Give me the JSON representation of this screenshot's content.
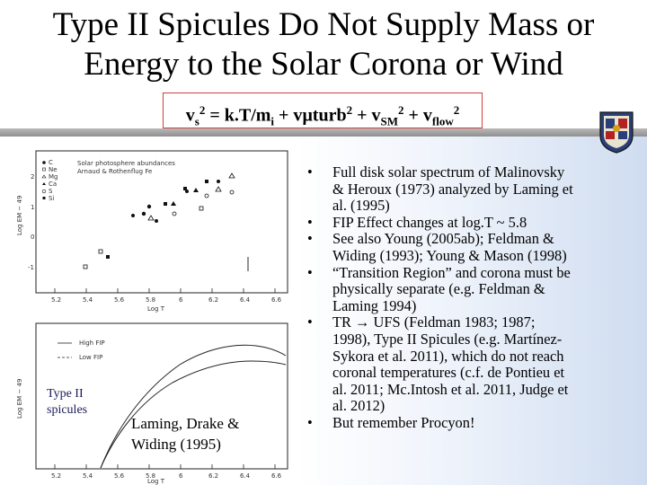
{
  "title": {
    "line1": "Type II Spicules Do Not Supply Mass or",
    "line2": "Energy to the Solar Corona or Wind"
  },
  "equation": {
    "v": "v",
    "s": "s",
    "sq": "2",
    "kT": " = k.T/m",
    "i": "i",
    "plus_v": " + v",
    "mu": "μ",
    "turb": "turb",
    "plus_v2": " + v",
    "sm": "SM",
    "plus_v3": " + v",
    "flow": "flow"
  },
  "figure_top": {
    "legend_line1": "Solar photosphere abundances",
    "legend_line2": "Arnaud & Rothenflug Fe",
    "legend_items": [
      "C",
      "Ne",
      "Mg",
      "Ca",
      "S",
      "Si"
    ],
    "ylabel": "Log EM − 49",
    "xlabel": "Log T",
    "x_ticks": [
      "5.2",
      "5.4",
      "5.6",
      "5.8",
      "6",
      "6.2",
      "6.4",
      "6.6"
    ],
    "y_ticks": [
      "2",
      "1",
      "0",
      "-1"
    ]
  },
  "figure_bottom": {
    "high_fip": "High FIP",
    "low_fip": "Low FIP",
    "ylabel": "Log EM − 49",
    "xlabel": "Log T",
    "x_ticks": [
      "5.2",
      "5.4",
      "5.6",
      "5.8",
      "6",
      "6.2",
      "6.4",
      "6.6"
    ],
    "label_line1": "Type II",
    "label_line2": "spicules"
  },
  "citation": {
    "line1": "Laming, Drake &",
    "line2": "Widing (1995)"
  },
  "bullet_marker": "•",
  "bullets": [
    {
      "lines": [
        "Full disk solar spectrum of Malinovsky",
        "& Heroux (1973) analyzed by Laming et",
        "al. (1995)"
      ]
    },
    {
      "lines": [
        "FIP Effect changes at log.T ~ 5.8"
      ]
    },
    {
      "lines": [
        "See also Young (2005ab); Feldman &",
        "Widing (1993); Young & Mason (1998)"
      ]
    },
    {
      "lines": [
        "“Transition Region” and corona must be",
        "physically separate (e.g. Feldman &",
        "Laming 1994)"
      ]
    },
    {
      "lines": [
        "TR → UFS (Feldman 1983; 1987;",
        "1998), Type II Spicules (e.g. Martínez-",
        "Sykora et al. 2011), which do not reach",
        "coronal temperatures (c.f. de Pontieu et",
        "al. 2011; Mc.Intosh et al. 2011, Judge et",
        "al. 2012)"
      ]
    },
    {
      "lines": [
        "But remember Procyon!"
      ]
    }
  ]
}
